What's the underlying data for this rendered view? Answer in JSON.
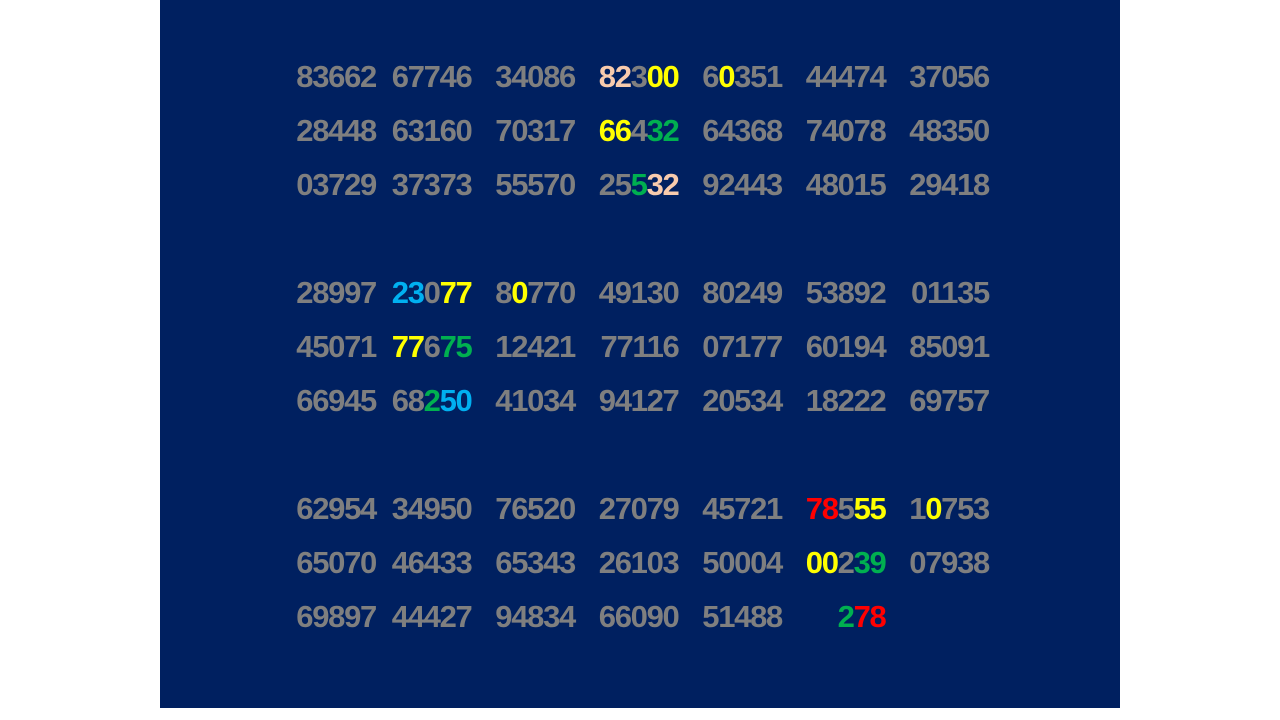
{
  "colors": {
    "background": "#002060",
    "gray": "#7f7f7f",
    "peach": "#f8cbad",
    "yellow": "#ffff00",
    "green": "#00b050",
    "blue": "#00b0f0",
    "red": "#ff0000"
  },
  "blocks": [
    {
      "rows": [
        [
          [
            [
              "83662",
              "gray"
            ]
          ],
          [
            [
              "67746",
              "gray"
            ]
          ],
          [
            [
              "34086",
              "gray"
            ]
          ],
          [
            [
              "82",
              "peach"
            ],
            [
              "3",
              "gray"
            ],
            [
              "00",
              "yellow"
            ]
          ],
          [
            [
              "6",
              "gray"
            ],
            [
              "0",
              "yellow"
            ],
            [
              "351",
              "gray"
            ]
          ],
          [
            [
              "44474",
              "gray"
            ]
          ],
          [
            [
              "37056",
              "gray"
            ]
          ]
        ],
        [
          [
            [
              "28448",
              "gray"
            ]
          ],
          [
            [
              "63160",
              "gray"
            ]
          ],
          [
            [
              "70317",
              "gray"
            ]
          ],
          [
            [
              "66",
              "yellow"
            ],
            [
              "4",
              "gray"
            ],
            [
              "32",
              "green"
            ]
          ],
          [
            [
              "64368",
              "gray"
            ]
          ],
          [
            [
              "74078",
              "gray"
            ]
          ],
          [
            [
              "48350",
              "gray"
            ]
          ]
        ],
        [
          [
            [
              "03729",
              "gray"
            ]
          ],
          [
            [
              "37373",
              "gray"
            ]
          ],
          [
            [
              "55570",
              "gray"
            ]
          ],
          [
            [
              "25",
              "gray"
            ],
            [
              "5",
              "green"
            ],
            [
              "32",
              "peach"
            ]
          ],
          [
            [
              "92443",
              "gray"
            ]
          ],
          [
            [
              "48015",
              "gray"
            ]
          ],
          [
            [
              "29418",
              "gray"
            ]
          ]
        ]
      ]
    },
    {
      "rows": [
        [
          [
            [
              "28997",
              "gray"
            ]
          ],
          [
            [
              "23",
              "blue"
            ],
            [
              "0",
              "gray"
            ],
            [
              "77",
              "yellow"
            ]
          ],
          [
            [
              "8",
              "gray"
            ],
            [
              "0",
              "yellow"
            ],
            [
              "770",
              "gray"
            ]
          ],
          [
            [
              "49130",
              "gray"
            ]
          ],
          [
            [
              "80249",
              "gray"
            ]
          ],
          [
            [
              "53892",
              "gray"
            ]
          ],
          [
            [
              "01135",
              "gray"
            ]
          ]
        ],
        [
          [
            [
              "45071",
              "gray"
            ]
          ],
          [
            [
              "77",
              "yellow"
            ],
            [
              "6",
              "gray"
            ],
            [
              "75",
              "green"
            ]
          ],
          [
            [
              "12421",
              "gray"
            ]
          ],
          [
            [
              "77116",
              "gray"
            ]
          ],
          [
            [
              "07177",
              "gray"
            ]
          ],
          [
            [
              "60194",
              "gray"
            ]
          ],
          [
            [
              "85091",
              "gray"
            ]
          ]
        ],
        [
          [
            [
              "66945",
              "gray"
            ]
          ],
          [
            [
              "68",
              "gray"
            ],
            [
              "2",
              "green"
            ],
            [
              "50",
              "blue"
            ]
          ],
          [
            [
              "41034",
              "gray"
            ]
          ],
          [
            [
              "94127",
              "gray"
            ]
          ],
          [
            [
              "20534",
              "gray"
            ]
          ],
          [
            [
              "18222",
              "gray"
            ]
          ],
          [
            [
              "69757",
              "gray"
            ]
          ]
        ]
      ]
    },
    {
      "rows": [
        [
          [
            [
              "62954",
              "gray"
            ]
          ],
          [
            [
              "34950",
              "gray"
            ]
          ],
          [
            [
              "76520",
              "gray"
            ]
          ],
          [
            [
              "27079",
              "gray"
            ]
          ],
          [
            [
              "45721",
              "gray"
            ]
          ],
          [
            [
              "78",
              "red"
            ],
            [
              "5",
              "gray"
            ],
            [
              "55",
              "yellow"
            ]
          ],
          [
            [
              "1",
              "gray"
            ],
            [
              "0",
              "yellow"
            ],
            [
              "753",
              "gray"
            ]
          ]
        ],
        [
          [
            [
              "65070",
              "gray"
            ]
          ],
          [
            [
              "46433",
              "gray"
            ]
          ],
          [
            [
              "65343",
              "gray"
            ]
          ],
          [
            [
              "26103",
              "gray"
            ]
          ],
          [
            [
              "50004",
              "gray"
            ]
          ],
          [
            [
              "00",
              "yellow"
            ],
            [
              "2",
              "gray"
            ],
            [
              "39",
              "green"
            ]
          ],
          [
            [
              "07938",
              "gray"
            ]
          ]
        ],
        [
          [
            [
              "69897",
              "gray"
            ]
          ],
          [
            [
              "44427",
              "gray"
            ]
          ],
          [
            [
              "94834",
              "gray"
            ]
          ],
          [
            [
              "66090",
              "gray"
            ]
          ],
          [
            [
              "51488",
              "gray"
            ]
          ],
          [
            [
              "2",
              "green"
            ],
            [
              "78",
              "red"
            ]
          ]
        ]
      ]
    }
  ]
}
